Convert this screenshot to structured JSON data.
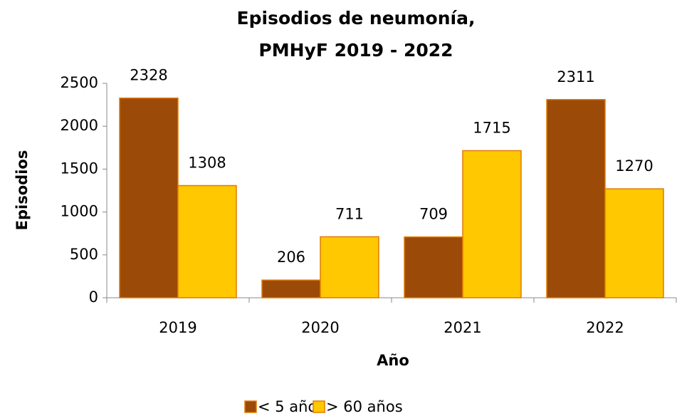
{
  "chart_data": {
    "type": "bar",
    "title": [
      "Episodios de neumonía,",
      "PMHyF 2019 - 2022"
    ],
    "x_label": "Año",
    "y_label": "Episodios",
    "categories": [
      "2019",
      "2020",
      "2021",
      "2022"
    ],
    "series": [
      {
        "name": "< 5 años",
        "color": "#9c4a08",
        "values": [
          2328,
          206,
          709,
          2311
        ]
      },
      {
        "name": "> 60 años",
        "color": "#ffc800",
        "values": [
          1308,
          711,
          1715,
          1270
        ]
      }
    ],
    "ylim": [
      0,
      2500
    ],
    "yticks": [
      0,
      500,
      1000,
      1500,
      2000,
      2500
    ]
  }
}
